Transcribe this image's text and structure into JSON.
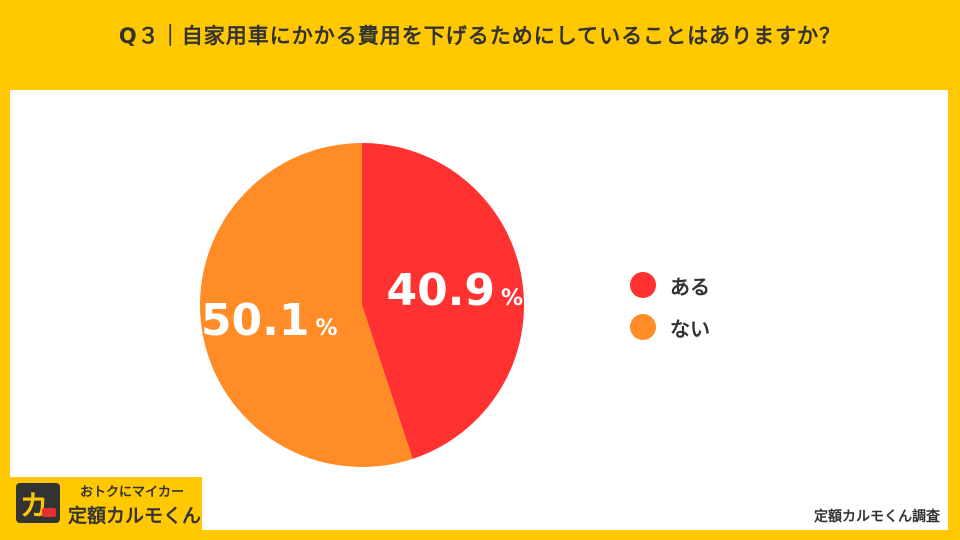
{
  "title": "Q３｜自家用車にかかる費用を下げるためにしていることはありますか？",
  "chart_data": {
    "type": "pie",
    "slices": [
      {
        "label": "ある",
        "value": 40.9,
        "display": "40.9",
        "unit": "%",
        "color": "#FF3131"
      },
      {
        "label": "ない",
        "value": 50.1,
        "display": "50.1",
        "unit": "%",
        "color": "#FF8C26"
      }
    ],
    "start": "top",
    "direction": "clockwise",
    "legend_position": "right"
  },
  "legend": [
    {
      "label": "ある",
      "color": "#FF3131"
    },
    {
      "label": "ない",
      "color": "#FF8C26"
    }
  ],
  "logo": {
    "tagline": "おトクにマイカー",
    "brand": "定額カルモくん",
    "mark_icon": "karumo-logo-icon"
  },
  "source": "定額カルモくん調査"
}
